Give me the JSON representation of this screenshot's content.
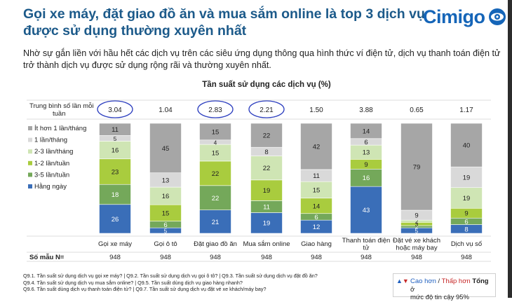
{
  "header": {
    "title_line1": "Gọi xe máy, đặt giao đồ ăn và mua sắm online là top 3 dịch vụ",
    "title_line2": "được sử dụng thường xuyên nhất",
    "logo_text": "Cimigo",
    "subtitle": "Nhờ sự gắn liền với hầu hết các dịch vụ trên các siêu ứng dụng thông qua hình thức ví điện tử, dịch vụ thanh toán điện tử trở thành dịch vụ được sử dụng rộng rãi và thường xuyên nhất."
  },
  "chart_data": {
    "type": "bar",
    "stacked": true,
    "percent": true,
    "title": "Tần suất sử dụng các dịch vụ (%)",
    "categories": [
      "Gọi xe máy",
      "Gọi ô tô",
      "Đặt giao đồ ăn",
      "Mua sắm online",
      "Giao hàng",
      "Thanh toán điện tử",
      "Đặt vé xe khách hoặc máy bay",
      "Dịch vụ số"
    ],
    "series": [
      {
        "name": "Hằng ngày",
        "color": "#3a6eb8",
        "text_color": "#ffffff",
        "values": [
          26,
          5,
          21,
          19,
          12,
          43,
          5,
          8
        ]
      },
      {
        "name": "3-5 lần/tuần",
        "color": "#74a85a",
        "text_color": "#ffffff",
        "values": [
          18,
          6,
          22,
          11,
          6,
          16,
          2,
          6
        ]
      },
      {
        "name": "1-2 lần/tuần",
        "color": "#a9cc3e",
        "text_color": "#222222",
        "values": [
          23,
          15,
          22,
          19,
          14,
          9,
          3,
          9
        ]
      },
      {
        "name": "2-3 lần/tháng",
        "color": "#cfe5b4",
        "text_color": "#222222",
        "values": [
          16,
          16,
          15,
          22,
          15,
          13,
          2,
          19
        ]
      },
      {
        "name": "1 lần/tháng",
        "color": "#d9d9d9",
        "text_color": "#222222",
        "values": [
          5,
          13,
          4,
          8,
          11,
          6,
          9,
          19
        ]
      },
      {
        "name": "Ít hơn 1 lần/tháng",
        "color": "#a6a6a6",
        "text_color": "#222222",
        "values": [
          11,
          45,
          15,
          22,
          42,
          14,
          79,
          40
        ]
      }
    ],
    "legend_order": [
      "Ít hơn 1 lần/tháng",
      "1 lần/tháng",
      "2-3 lần/tháng",
      "1-2 lần/tuần",
      "3-5 lần/tuần",
      "Hằng ngày"
    ],
    "average_label": "Trung bình số lần mỗi tuần",
    "averages": [
      "3.04",
      "1.04",
      "2.83",
      "2.21",
      "1.50",
      "3.88",
      "0.65",
      "1.17"
    ],
    "averages_circled": [
      true,
      false,
      true,
      true,
      false,
      false,
      false,
      false
    ],
    "sample_label": "Số mẫu N=",
    "sample_sizes": [
      "948",
      "948",
      "948",
      "948",
      "948",
      "948",
      "948",
      "948"
    ]
  },
  "footnotes": [
    "Q9.1. Tần suất sử dụng dịch vụ gọi xe máy? | Q9.2. Tần suất sử dụng dịch vụ gọi ô tô? | Q9.3. Tần suất sử dụng dịch vụ đặt đồ ăn?",
    "Q9.4. Tần suất sử dụng dịch vụ mua sắm online? | Q9.5. Tần suất dùng dịch vụ giao hàng nhanh?",
    "Q9.6. Tần suất dùng dịch vụ thanh toán điện tử? | Q9.7. Tần suất sử dụng dịch vụ đặt vé xe khách/máy bay?"
  ],
  "significance": {
    "higher": "Cao hơn",
    "separator": " / ",
    "lower": "Thấp hơn",
    "total": "Tổng",
    "suffix": " ở",
    "line2": "mức độ tin cậy 95%",
    "colors": {
      "higher": "#1f5fbf",
      "lower": "#c62828"
    }
  }
}
